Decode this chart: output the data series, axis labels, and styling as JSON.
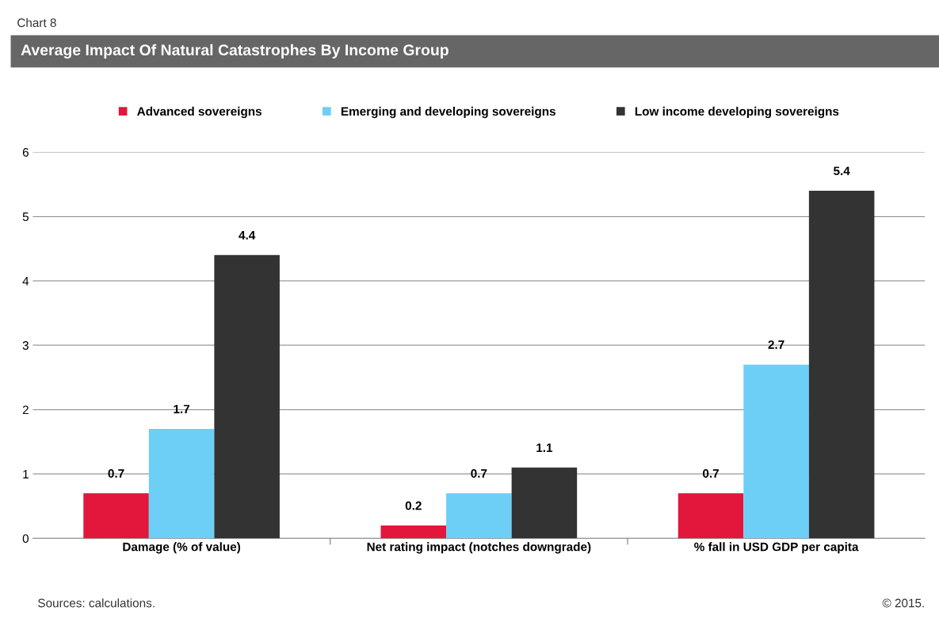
{
  "chart_data": {
    "type": "bar",
    "title": "Average Impact Of Natural Catastrophes By Income Group",
    "categories": [
      "Damage (% of value)",
      "Net rating impact (notches downgrade)",
      "% fall in USD GDP per capita"
    ],
    "series": [
      {
        "name": "Advanced sovereigns",
        "color": "#e2173b",
        "values": [
          0.7,
          0.2,
          0.7
        ]
      },
      {
        "name": "Emerging and developing sovereigns",
        "color": "#6dcff6",
        "values": [
          1.7,
          0.7,
          2.7
        ]
      },
      {
        "name": "Low income developing sovereigns",
        "color": "#333333",
        "values": [
          4.4,
          1.1,
          5.4
        ]
      }
    ],
    "ylim": [
      0,
      6
    ],
    "yticks": [
      0,
      1,
      2,
      3,
      4,
      5,
      6
    ],
    "grid": "y",
    "legend": "top",
    "data_labels": true,
    "annotations": [
      "Chart 8",
      "Sources: calculations.",
      "© 2015."
    ]
  }
}
